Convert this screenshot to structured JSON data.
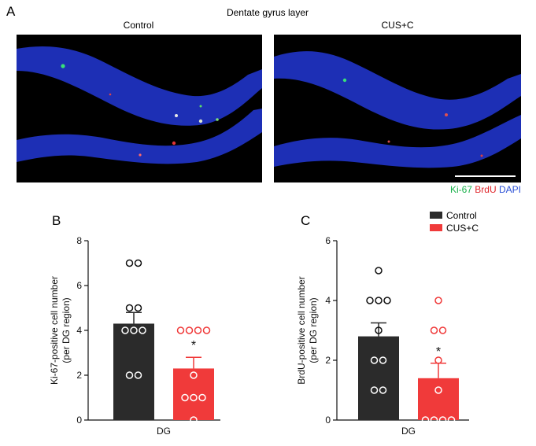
{
  "figure": {
    "panel_a": {
      "label": "A",
      "title": "Dentate gyrus layer",
      "images": [
        "Control",
        "CUS+C"
      ],
      "stain_legend": [
        {
          "text": "Ki-67",
          "color": "#19b04a"
        },
        {
          "text": "BrdU",
          "color": "#e0262b"
        },
        {
          "text": "DAPI",
          "color": "#2a4fd6"
        }
      ]
    },
    "legend": [
      {
        "name": "Control",
        "color": "#2b2b2b"
      },
      {
        "name": "CUS+C",
        "color": "#f03a3a"
      }
    ]
  },
  "chart_data": [
    {
      "panel": "B",
      "type": "bar",
      "xlabel": "DG",
      "ylabel_line1": "Ki-67-positive cell number",
      "ylabel_line2": "(per DG region)",
      "ylim": [
        0,
        8
      ],
      "yticks": [
        "0",
        "2",
        "4",
        "6",
        "8"
      ],
      "series": [
        {
          "name": "Control",
          "mean": 4.3,
          "sem": 0.5,
          "color": "#2b2b2b",
          "points": [
            7,
            7,
            5,
            5,
            4,
            4,
            4,
            2,
            2
          ]
        },
        {
          "name": "CUS+C",
          "mean": 2.3,
          "sem": 0.5,
          "color": "#f03a3a",
          "significance": "*",
          "points": [
            4,
            4,
            4,
            4,
            2,
            1,
            1,
            1,
            0
          ]
        }
      ]
    },
    {
      "panel": "C",
      "type": "bar",
      "xlabel": "DG",
      "ylabel_line1": "BrdU-positive cell number",
      "ylabel_line2": "(per DG region)",
      "ylim": [
        0,
        6
      ],
      "yticks": [
        "0",
        "2",
        "4",
        "6"
      ],
      "series": [
        {
          "name": "Control",
          "mean": 2.8,
          "sem": 0.45,
          "color": "#2b2b2b",
          "points": [
            5,
            4,
            4,
            4,
            3,
            2,
            2,
            1,
            1
          ]
        },
        {
          "name": "CUS+C",
          "mean": 1.4,
          "sem": 0.5,
          "color": "#f03a3a",
          "significance": "*",
          "points": [
            4,
            3,
            3,
            2,
            1,
            0,
            0,
            0,
            0
          ]
        }
      ]
    }
  ]
}
